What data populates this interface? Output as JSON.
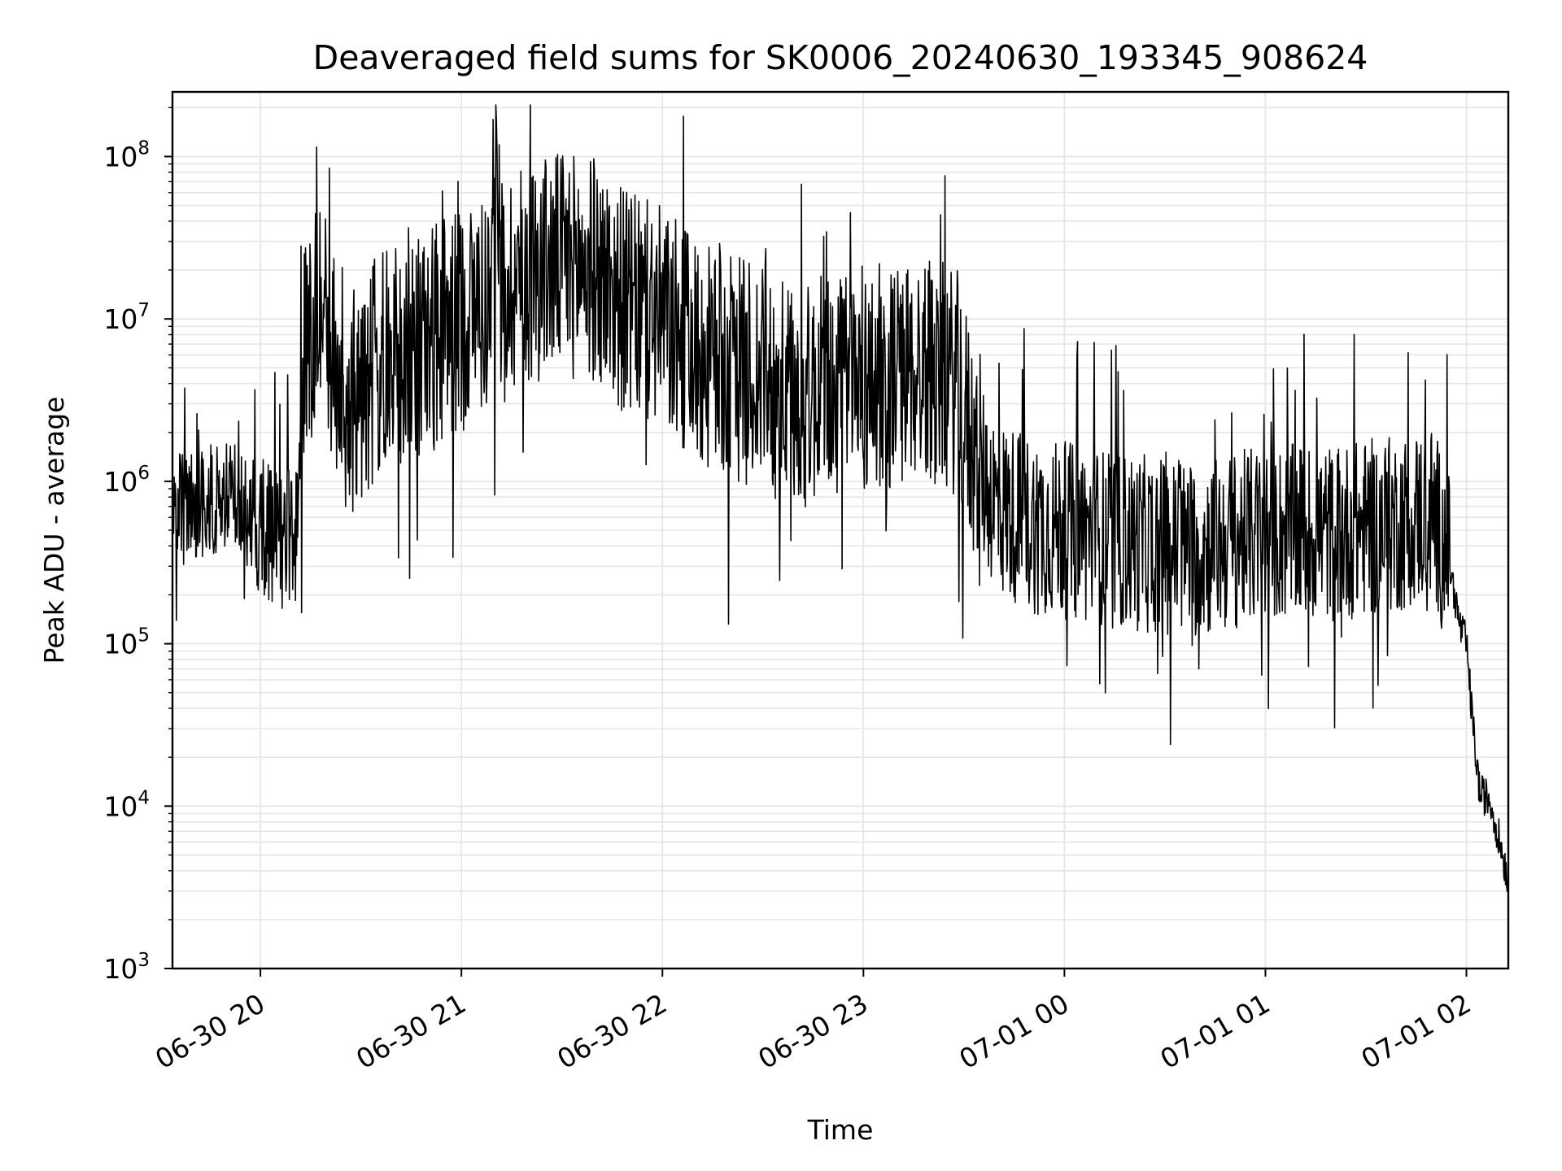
{
  "chart_data": {
    "type": "line",
    "title": "Deaveraged field sums for SK0006_20240630_193345_908624",
    "xlabel": "Time",
    "ylabel": "Peak ADU - average",
    "y_scale": "log",
    "ylim": [
      1000,
      250000000
    ],
    "xlim": [
      "2024-06-30 19:33:45",
      "2024-07-01 02:12:30"
    ],
    "grid": true,
    "line_color": "#000000",
    "grid_color": "#e6e6e6",
    "x_ticks": [
      {
        "value": "2024-06-30 20:00:00",
        "label": "06-30 20"
      },
      {
        "value": "2024-06-30 21:00:00",
        "label": "06-30 21"
      },
      {
        "value": "2024-06-30 22:00:00",
        "label": "06-30 22"
      },
      {
        "value": "2024-06-30 23:00:00",
        "label": "06-30 23"
      },
      {
        "value": "2024-07-01 00:00:00",
        "label": "07-01 00"
      },
      {
        "value": "2024-07-01 01:00:00",
        "label": "07-01 01"
      },
      {
        "value": "2024-07-01 02:00:00",
        "label": "07-01 02"
      }
    ],
    "y_ticks": [
      {
        "value": 1000,
        "base": "10",
        "exp": "3"
      },
      {
        "value": 10000,
        "base": "10",
        "exp": "4"
      },
      {
        "value": 100000,
        "base": "10",
        "exp": "5"
      },
      {
        "value": 1000000,
        "base": "10",
        "exp": "6"
      },
      {
        "value": 10000000,
        "base": "10",
        "exp": "7"
      },
      {
        "value": 100000000,
        "base": "10",
        "exp": "8"
      }
    ],
    "series": [
      {
        "points": [
          [
            "2024-06-30 19:33:45",
            650000
          ],
          [
            "2024-06-30 19:40:00",
            700000
          ],
          [
            "2024-06-30 19:45:00",
            750000
          ],
          [
            "2024-06-30 19:50:00",
            800000
          ],
          [
            "2024-06-30 19:55:00",
            700000
          ],
          [
            "2024-06-30 20:00:00",
            550000
          ],
          [
            "2024-06-30 20:05:00",
            450000
          ],
          [
            "2024-06-30 20:10:00",
            400000
          ],
          [
            "2024-06-30 20:13:00",
            6000000
          ],
          [
            "2024-06-30 20:17:00",
            10000000
          ],
          [
            "2024-06-30 20:20:00",
            8000000
          ],
          [
            "2024-06-30 20:25:00",
            3000000
          ],
          [
            "2024-06-30 20:30:00",
            3500000
          ],
          [
            "2024-06-30 20:35:00",
            5000000
          ],
          [
            "2024-06-30 20:45:00",
            6000000
          ],
          [
            "2024-06-30 21:00:00",
            10000000
          ],
          [
            "2024-06-30 21:10:00",
            15000000
          ],
          [
            "2024-06-30 21:20:00",
            20000000
          ],
          [
            "2024-06-30 21:30:00",
            22000000
          ],
          [
            "2024-06-30 21:40:00",
            20000000
          ],
          [
            "2024-06-30 21:50:00",
            12000000
          ],
          [
            "2024-06-30 22:00:00",
            10000000
          ],
          [
            "2024-06-30 22:10:00",
            6000000
          ],
          [
            "2024-06-30 22:20:00",
            5000000
          ],
          [
            "2024-06-30 22:30:00",
            4500000
          ],
          [
            "2024-06-30 22:40:00",
            3000000
          ],
          [
            "2024-06-30 22:50:00",
            4000000
          ],
          [
            "2024-06-30 23:00:00",
            4000000
          ],
          [
            "2024-06-30 23:10:00",
            4500000
          ],
          [
            "2024-06-30 23:20:00",
            5000000
          ],
          [
            "2024-06-30 23:28:00",
            4000000
          ],
          [
            "2024-06-30 23:33:00",
            1500000
          ],
          [
            "2024-06-30 23:40:00",
            700000
          ],
          [
            "2024-06-30 23:50:00",
            550000
          ],
          [
            "2024-07-01 00:00:00",
            500000
          ],
          [
            "2024-07-01 00:20:00",
            420000
          ],
          [
            "2024-07-01 00:40:00",
            380000
          ],
          [
            "2024-07-01 01:00:00",
            480000
          ],
          [
            "2024-07-01 01:20:00",
            480000
          ],
          [
            "2024-07-01 01:40:00",
            550000
          ],
          [
            "2024-07-01 01:50:00",
            650000
          ],
          [
            "2024-07-01 01:55:00",
            300000
          ],
          [
            "2024-07-01 01:58:00",
            130000
          ],
          [
            "2024-07-01 02:00:00",
            100000
          ],
          [
            "2024-07-01 02:02:00",
            30000
          ],
          [
            "2024-07-01 02:04:00",
            12000
          ],
          [
            "2024-07-01 02:07:00",
            11000
          ],
          [
            "2024-07-01 02:10:00",
            6000
          ],
          [
            "2024-07-01 02:12:30",
            3500
          ]
        ]
      }
    ]
  }
}
